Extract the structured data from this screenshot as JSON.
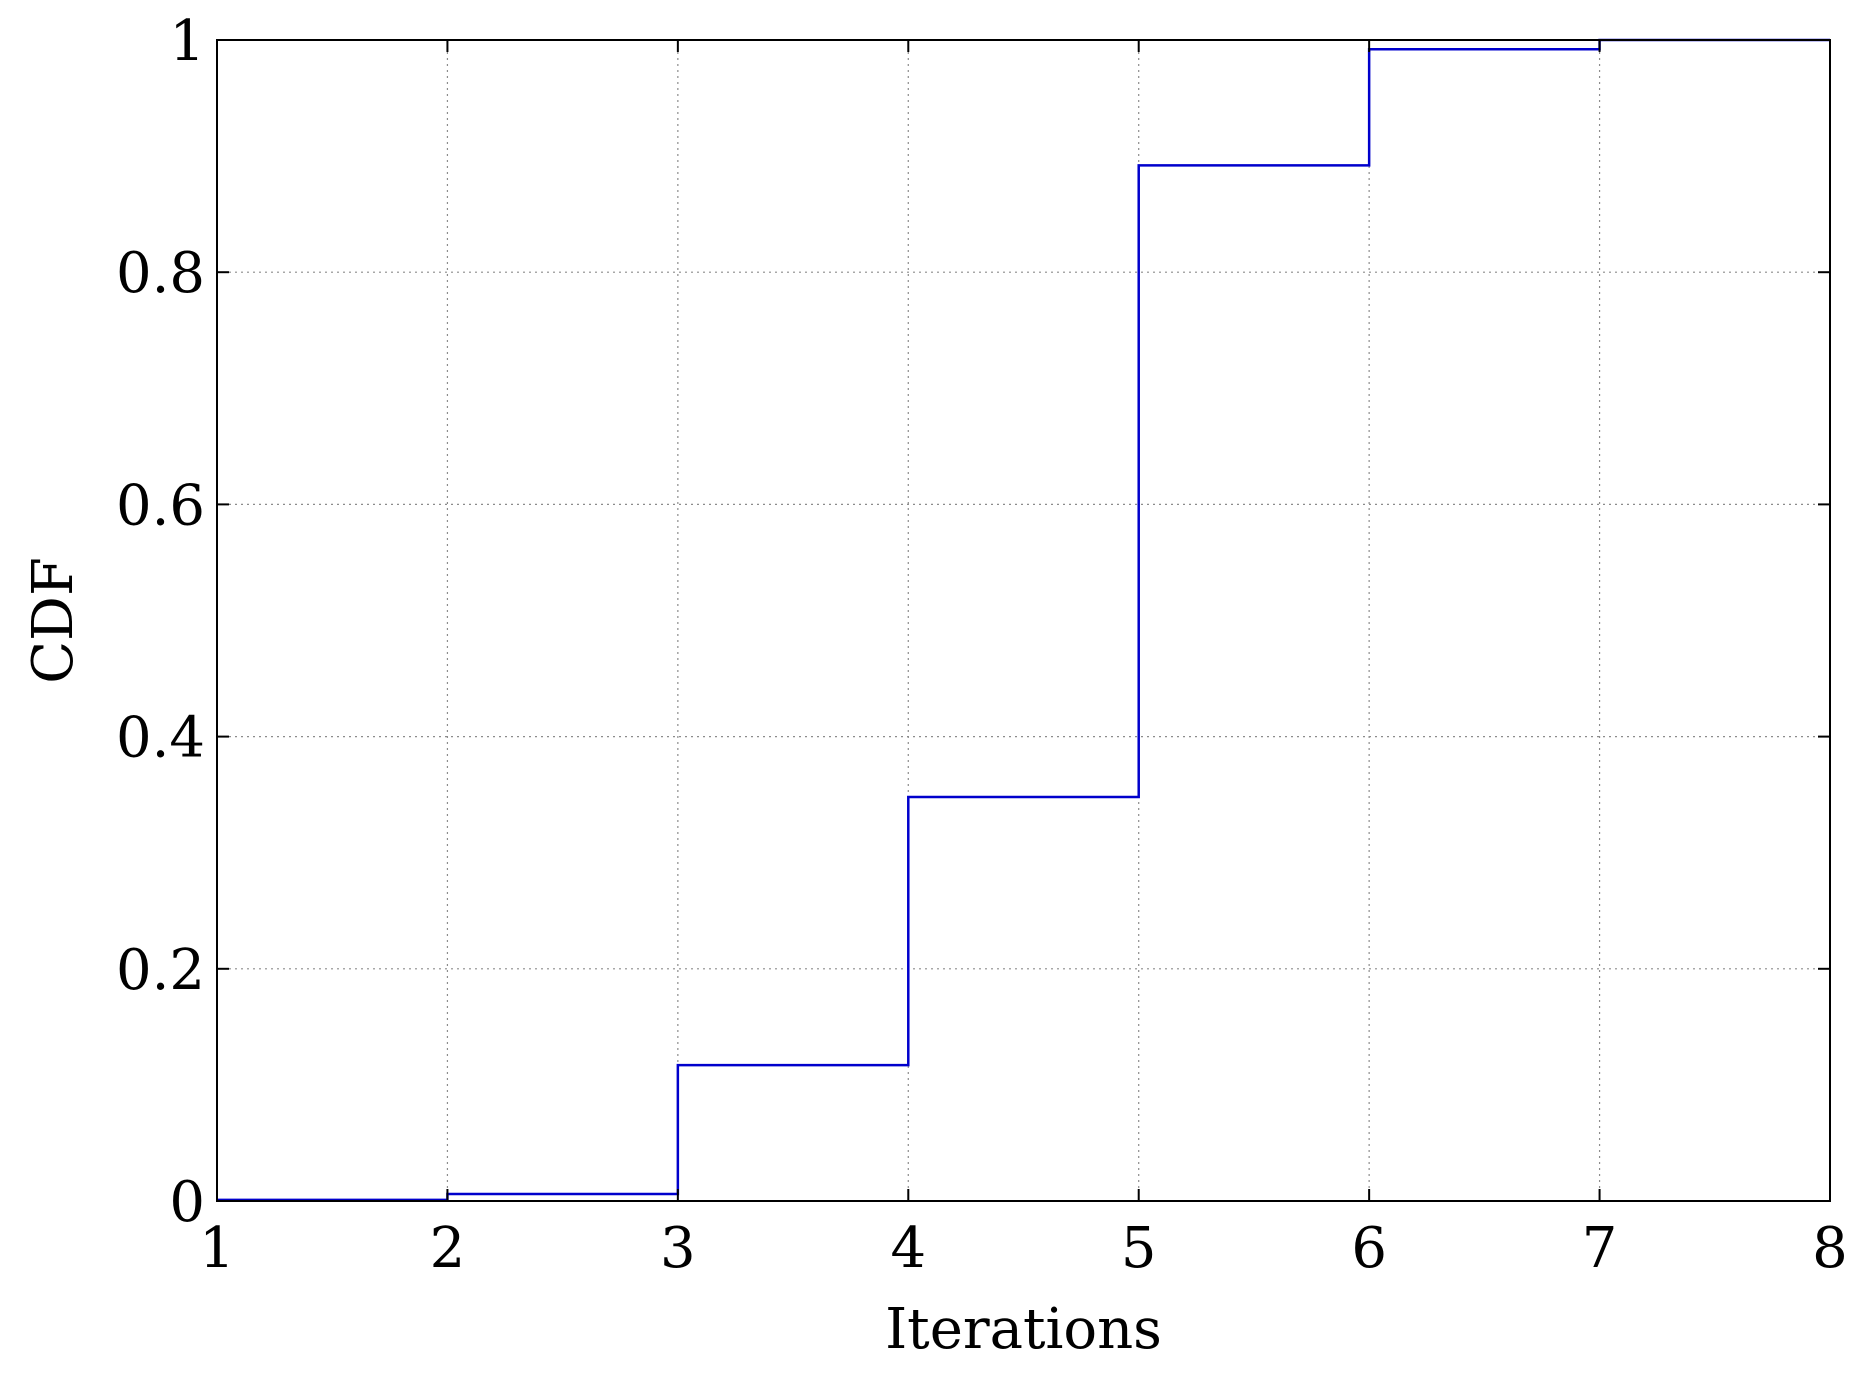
{
  "chart_data": {
    "type": "line",
    "step": true,
    "xlabel": "Iterations",
    "ylabel": "CDF",
    "xlim": [
      1,
      8
    ],
    "ylim": [
      0,
      1
    ],
    "x_ticks": [
      "1",
      "2",
      "3",
      "4",
      "5",
      "6",
      "7",
      "8"
    ],
    "y_ticks": [
      "0",
      "0.2",
      "0.4",
      "0.6",
      "0.8",
      "1"
    ],
    "grid": true,
    "series": [
      {
        "color": "#0000cc",
        "x": [
          1,
          2,
          3,
          4,
          5,
          6,
          7,
          8
        ],
        "y": [
          0.001,
          0.006,
          0.117,
          0.348,
          0.892,
          0.992,
          1.0,
          1.0
        ]
      }
    ]
  }
}
